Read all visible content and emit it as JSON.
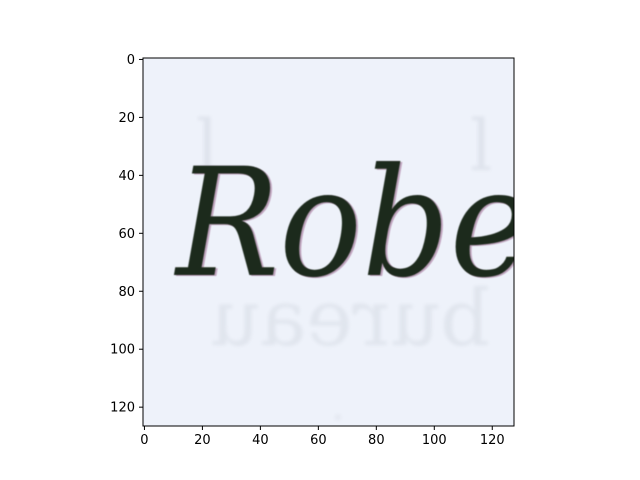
{
  "chart_data": {
    "type": "image",
    "image_text": "Robe",
    "image_shape": [
      127,
      128
    ],
    "xlim": [
      -0.5,
      127.5
    ],
    "ylim": [
      126.5,
      -0.5
    ],
    "y_axis_inverted": true,
    "x_ticks": [
      0,
      20,
      40,
      60,
      80,
      100,
      120
    ],
    "x_tick_labels": [
      "0",
      "20",
      "40",
      "60",
      "80",
      "100",
      "120"
    ],
    "y_ticks": [
      0,
      20,
      40,
      60,
      80,
      100,
      120
    ],
    "y_tick_labels": [
      "0",
      "20",
      "40",
      "60",
      "80",
      "100",
      "120"
    ],
    "grid": false,
    "legend": "none",
    "colors": {
      "ink": "#1e2a1c",
      "paper": "#eef2fa",
      "bleed_through": "#d9dde6",
      "ink_fringe": "#8a4a78"
    }
  }
}
